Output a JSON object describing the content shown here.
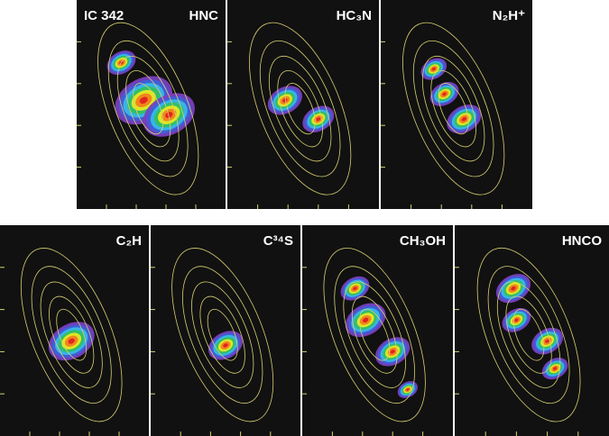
{
  "source": "IC 342",
  "panels": [
    "HNC",
    "HC₃N",
    "N₂H⁺",
    "C₂H",
    "C³⁴S",
    "CH₃OH",
    "HNCO"
  ]
}
